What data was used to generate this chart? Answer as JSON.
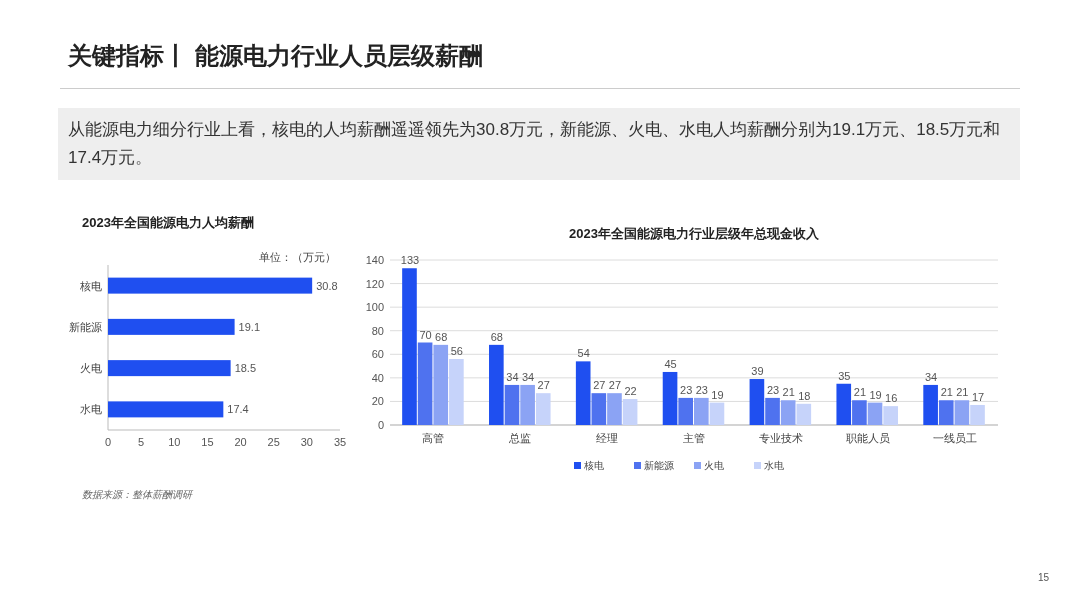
{
  "chart_data": [
    {
      "type": "other",
      "title": "关键指标丨 能源电力行业人员层级薪酬",
      "subtitle": "从能源电力细分行业上看，核电的人均薪酬遥遥领先为30.8万元，新能源、火电、水电人均薪酬分别为19.1万元、18.5万元和17.4万元。",
      "annotations": [
        "15"
      ]
    },
    {
      "type": "bar",
      "title": "2023年全国能源电力人均薪酬",
      "orientation": "horizontal",
      "categories": [
        "核电",
        "新能源",
        "火电",
        "水电"
      ],
      "values": [
        30.8,
        19.1,
        18.5,
        17.4
      ],
      "color": "#1f4ff0",
      "xlim": [
        0,
        35
      ],
      "xticks": [
        0,
        5,
        10,
        15,
        20,
        25,
        30,
        35
      ],
      "data_labels": true,
      "annotations": [
        "单位：（万元）",
        "数据来源：整体薪酬调研"
      ]
    },
    {
      "type": "bar",
      "title": "2023年全国能源电力行业层级年总现金收入",
      "categories": [
        "高管",
        "总监",
        "经理",
        "主管",
        "专业技术",
        "职能人员",
        "一线员工"
      ],
      "series": [
        {
          "name": "核电",
          "color": "#1f4ff0",
          "values": [
            133,
            68,
            54,
            45,
            39,
            35,
            34
          ]
        },
        {
          "name": "新能源",
          "color": "#4f72ef",
          "values": [
            70,
            34,
            27,
            23,
            23,
            21,
            21
          ]
        },
        {
          "name": "火电",
          "color": "#8ba3f4",
          "values": [
            68,
            34,
            27,
            23,
            21,
            19,
            21
          ]
        },
        {
          "name": "水电",
          "color": "#c6d3fa",
          "values": [
            56,
            27,
            22,
            19,
            18,
            16,
            17
          ]
        }
      ],
      "ylim": [
        0,
        140
      ],
      "yticks": [
        0,
        20,
        40,
        60,
        80,
        100,
        120,
        140
      ],
      "grid": "y",
      "legend": "bottom",
      "data_labels": true
    }
  ]
}
